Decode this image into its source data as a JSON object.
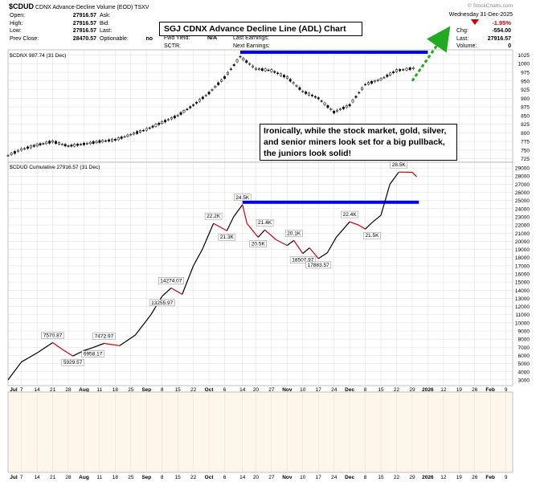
{
  "header": {
    "symbol": "$CDUD",
    "description": "CDNX Advance-Decline Volume (EOD) TSXV",
    "source": "© StockCharts.com",
    "date": "Wednesday 31-Dec-2025",
    "change_pct": "-1.95%",
    "fields_left": [
      {
        "label": "Open:",
        "value": "27916.57"
      },
      {
        "label": "High:",
        "value": "27916.57"
      },
      {
        "label": "Low:",
        "value": "27916.57"
      },
      {
        "label": "Prev Close:",
        "value": "28470.57"
      }
    ],
    "fields_mid": [
      {
        "label": "Ask:",
        "value": ""
      },
      {
        "label": "Bid:",
        "value": ""
      },
      {
        "label": "Last:",
        "value": ""
      },
      {
        "label": "Optionable:",
        "value": "no"
      }
    ],
    "fields_mid2": [
      {
        "label": "Fwd Yield:",
        "value": "N/A"
      },
      {
        "label": "SCTR:",
        "value": ""
      }
    ],
    "fields_mid3": [
      {
        "label": "Last Earnings:",
        "value": ""
      },
      {
        "label": "Next Earnings:",
        "value": ""
      }
    ],
    "fields_right": [
      {
        "label": "Chg:",
        "value": "-554.00"
      },
      {
        "label": "Last:",
        "value": "27916.57"
      },
      {
        "label": "Volume:",
        "value": "0"
      }
    ]
  },
  "annotations": {
    "title_box": "SGJ CDNX Advance Decline Line (ADL) Chart",
    "comment_box": "Ironically, while the stock market, gold, silver, and senior miners look set for a big pullback, the juniors look solid!"
  },
  "colors": {
    "up_candle": "#000000",
    "down_candle": "#000000",
    "line": "#000000",
    "down_line": "#d40000",
    "resistance": "#0000ee",
    "arrow": "#22aa22",
    "red": "#cc0000",
    "panel_fill": "#fdf6ea",
    "grid": "#dddddd"
  },
  "chart_data": [
    {
      "type": "candlestick",
      "legend": "$CDNX 987.74 (31 Dec)",
      "y_ticks": [
        725,
        750,
        775,
        800,
        825,
        850,
        875,
        900,
        925,
        950,
        975,
        1000,
        1025
      ],
      "ylim": [
        715,
        1040
      ],
      "x": [
        "Jul 1",
        "Jul 7",
        "Jul 14",
        "Jul 21",
        "Jul 28",
        "Aug 4",
        "Aug 11",
        "Aug 18",
        "Aug 25",
        "Sep 1",
        "Sep 8",
        "Sep 15",
        "Sep 22",
        "Sep 29",
        "Oct 6",
        "Oct 13",
        "Oct 20",
        "Oct 27",
        "Nov 3",
        "Nov 10",
        "Nov 17",
        "Nov 24",
        "Dec 1",
        "Dec 8",
        "Dec 15",
        "Dec 22",
        "Dec 31"
      ],
      "close": [
        735,
        752,
        765,
        775,
        762,
        768,
        775,
        780,
        795,
        810,
        830,
        850,
        880,
        915,
        960,
        1020,
        985,
        980,
        960,
        920,
        900,
        860,
        880,
        940,
        955,
        980,
        988
      ],
      "resistance_level": 1033,
      "resistance_range": [
        "Oct 13",
        "Jan 5"
      ],
      "arrow": {
        "from": [
          "Dec 29",
          950
        ],
        "to": [
          "Jan 12",
          1080
        ]
      }
    },
    {
      "type": "line",
      "legend": "$CDUD Cumulative 27916.57 (31 Dec)",
      "y_ticks": [
        3000,
        4000,
        5000,
        6000,
        7000,
        8000,
        9000,
        10000,
        11000,
        12000,
        13000,
        14000,
        15000,
        16000,
        17000,
        18000,
        19000,
        20000,
        21000,
        22000,
        23000,
        24000,
        25000,
        26000,
        27000,
        28000,
        29000
      ],
      "ylim": [
        2300,
        29700
      ],
      "x": [
        "Jul 1",
        "Jul 7",
        "Jul 14",
        "Jul 21",
        "Jul 25",
        "Jul 30",
        "Aug 4",
        "Aug 8",
        "Aug 13",
        "Aug 20",
        "Aug 27",
        "Sep 3",
        "Sep 8",
        "Sep 12",
        "Sep 17",
        "Sep 22",
        "Sep 26",
        "Oct 1",
        "Oct 7",
        "Oct 10",
        "Oct 14",
        "Oct 16",
        "Oct 21",
        "Oct 24",
        "Oct 29",
        "Nov 3",
        "Nov 6",
        "Nov 10",
        "Nov 13",
        "Nov 17",
        "Nov 21",
        "Nov 25",
        "Dec 1",
        "Dec 5",
        "Dec 8",
        "Dec 11",
        "Dec 15",
        "Dec 19",
        "Dec 23",
        "Dec 29",
        "Dec 31"
      ],
      "values": [
        3000,
        5200,
        6300,
        7570,
        6800,
        5929,
        6600,
        6958,
        7473,
        7200,
        8500,
        11000,
        13256,
        14274,
        13500,
        17000,
        19000,
        22200,
        21300,
        23000,
        24500,
        22200,
        20500,
        21400,
        20200,
        19500,
        20100,
        18508,
        19200,
        17884,
        18600,
        20500,
        22400,
        22000,
        21500,
        22300,
        23200,
        27000,
        28500,
        28470,
        27917
      ],
      "labels": [
        "7570.87",
        "5929.57",
        "7472.97",
        "6958.17",
        "14274.07",
        "13255.97",
        "22.2K",
        "21.3K",
        "24.5K",
        "20.5K",
        "21.4K",
        "20.1K",
        "18507.97",
        "17883.57",
        "22.4K",
        "21.5K",
        "28.5K"
      ],
      "resistance_level": 24800,
      "resistance_range": [
        "Oct 14",
        "Jan 1"
      ]
    }
  ],
  "x_axis_labels": [
    "Jul",
    "7",
    "14",
    "21",
    "28",
    "Aug",
    "11",
    "18",
    "25",
    "Sep",
    "8",
    "15",
    "22",
    "Oct",
    "6",
    "14",
    "20",
    "27",
    "Nov",
    "10",
    "17",
    "24",
    "Dec",
    "8",
    "15",
    "22",
    "29",
    "2026",
    "12",
    "19",
    "26",
    "Feb",
    "9"
  ]
}
